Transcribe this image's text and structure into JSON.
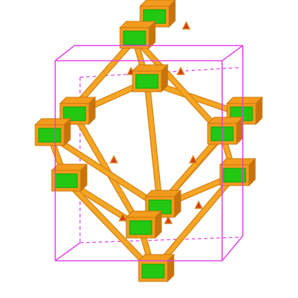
{
  "figure": {
    "kind": "crystal-framework-rendering",
    "colors": {
      "background": "#ffffff",
      "cell": "#e23ee6",
      "linker": "#f5a623",
      "linker_dark": "#d9861a",
      "node_face": "#22c812",
      "node_face_dark": "#12a10a",
      "node_frame": "#f39b1c",
      "node_frame_dark": "#c9730c",
      "vertex": "#d63a1a"
    },
    "icons": {
      "node": "cube-node-icon",
      "linker": "tapered-rod",
      "cell": "wireframe-box"
    }
  }
}
